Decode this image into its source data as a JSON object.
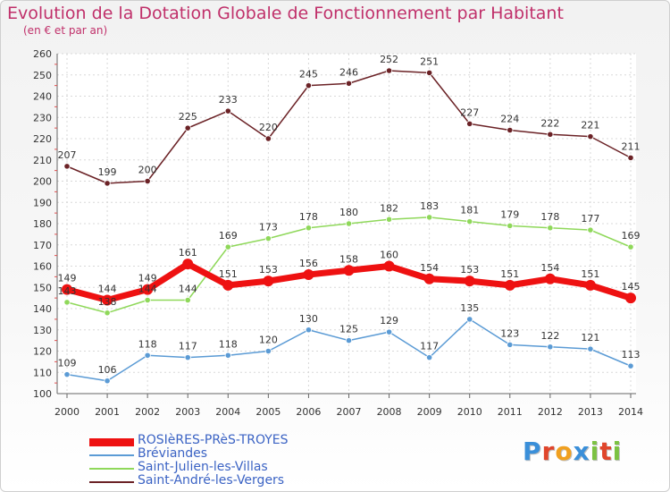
{
  "header": {
    "title": "Evolution de la Dotation Globale de Fonctionnement par Habitant",
    "subtitle": "(en € et par an)"
  },
  "logo": {
    "text": "Proxiti",
    "letters": [
      {
        "ch": "P",
        "color": "#3a8fd9"
      },
      {
        "ch": "r",
        "color": "#e0452b"
      },
      {
        "ch": "o",
        "color": "#f0a020"
      },
      {
        "ch": "x",
        "color": "#3a8fd9"
      },
      {
        "ch": "i",
        "color": "#7cc242"
      },
      {
        "ch": "t",
        "color": "#e0452b"
      },
      {
        "ch": "i",
        "color": "#7cc242"
      }
    ]
  },
  "chart_data": {
    "type": "line",
    "title": "Evolution de la Dotation Globale de Fonctionnement par Habitant",
    "subtitle": "(en € et par an)",
    "x": [
      "2000",
      "2001",
      "2002",
      "2003",
      "2004",
      "2005",
      "2006",
      "2007",
      "2008",
      "2009",
      "2010",
      "2011",
      "2012",
      "2013",
      "2014"
    ],
    "ylim": [
      100,
      260
    ],
    "yticks": [
      100,
      110,
      120,
      130,
      140,
      150,
      160,
      170,
      180,
      190,
      200,
      210,
      220,
      230,
      240,
      250,
      260
    ],
    "grid": true,
    "legend_position": "bottom-left",
    "series": [
      {
        "name": "ROSIèRES-PRèS-TROYES",
        "color": "#ee1111",
        "values": [
          149,
          144,
          149,
          161,
          151,
          153,
          156,
          158,
          160,
          154,
          153,
          151,
          154,
          151,
          145
        ],
        "labels_above": true
      },
      {
        "name": "Bréviandes",
        "color": "#5b9bd5",
        "values": [
          109,
          106,
          118,
          117,
          118,
          120,
          130,
          125,
          129,
          117,
          135,
          123,
          122,
          121,
          113
        ],
        "labels_above": true
      },
      {
        "name": "Saint-Julien-les-Villas",
        "color": "#8fd85a",
        "values": [
          143,
          138,
          144,
          144,
          169,
          173,
          178,
          180,
          182,
          183,
          181,
          179,
          178,
          177,
          169
        ],
        "labels_above": false
      },
      {
        "name": "Saint-André-les-Vergers",
        "color": "#6b2226",
        "values": [
          207,
          199,
          200,
          225,
          233,
          220,
          245,
          246,
          252,
          251,
          227,
          224,
          222,
          221,
          211
        ],
        "labels_above": true
      }
    ],
    "point_labels": {
      "ROSIèRES-PRèS-TROYES": [
        "149",
        "144",
        "149",
        "161",
        "151",
        "153",
        "156",
        "158",
        "160",
        "154",
        "153",
        "151",
        "154",
        "151",
        "145"
      ],
      "Bréviandes": [
        "109",
        "106",
        "118",
        "117",
        "118",
        "120",
        "130",
        "125",
        "129",
        "117",
        "135",
        "123",
        "122",
        "121",
        "113"
      ],
      "Saint-Julien-les-Villas": [
        "143",
        "138",
        "144",
        "144",
        "169",
        "173",
        "178",
        "180",
        "182",
        "183",
        "181",
        "179",
        "178",
        "177",
        "169"
      ],
      "Saint-André-les-Vergers": [
        "207",
        "199",
        "200",
        "225",
        "233",
        "220",
        "245",
        "246",
        "252",
        "251",
        "227",
        "224",
        "222",
        "221",
        "211"
      ]
    }
  }
}
